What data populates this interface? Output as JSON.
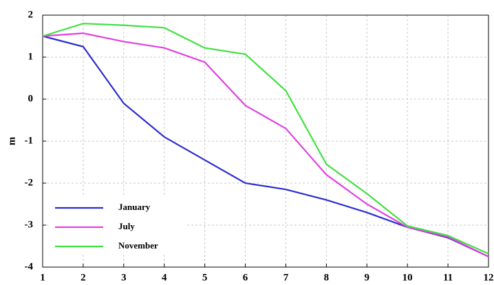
{
  "chart_data": {
    "type": "line",
    "ylabel": "m",
    "x": [
      1,
      2,
      3,
      4,
      5,
      6,
      7,
      8,
      9,
      10,
      11,
      12
    ],
    "series": [
      {
        "name": "January",
        "color": "#2b2bd0",
        "values": [
          1.5,
          1.25,
          -0.1,
          -0.9,
          -1.45,
          -2.0,
          -2.15,
          -2.4,
          -2.7,
          -3.05,
          -3.3,
          -3.75
        ]
      },
      {
        "name": "July",
        "color": "#e040e0",
        "values": [
          1.5,
          1.57,
          1.37,
          1.22,
          0.88,
          -0.15,
          -0.7,
          -1.8,
          -2.5,
          -3.05,
          -3.28,
          -3.75
        ]
      },
      {
        "name": "November",
        "color": "#40e040",
        "values": [
          1.5,
          1.8,
          1.76,
          1.7,
          1.22,
          1.07,
          0.2,
          -1.55,
          -2.25,
          -3.02,
          -3.25,
          -3.68
        ]
      }
    ],
    "xlim": [
      1,
      12
    ],
    "xticks": [
      1,
      2,
      3,
      4,
      5,
      6,
      7,
      8,
      9,
      10,
      11,
      12
    ],
    "ylim": [
      -4,
      2
    ],
    "yticks": [
      -4,
      -3,
      -2,
      -1,
      0,
      1,
      2
    ],
    "grid": true,
    "legend": "lower left"
  }
}
